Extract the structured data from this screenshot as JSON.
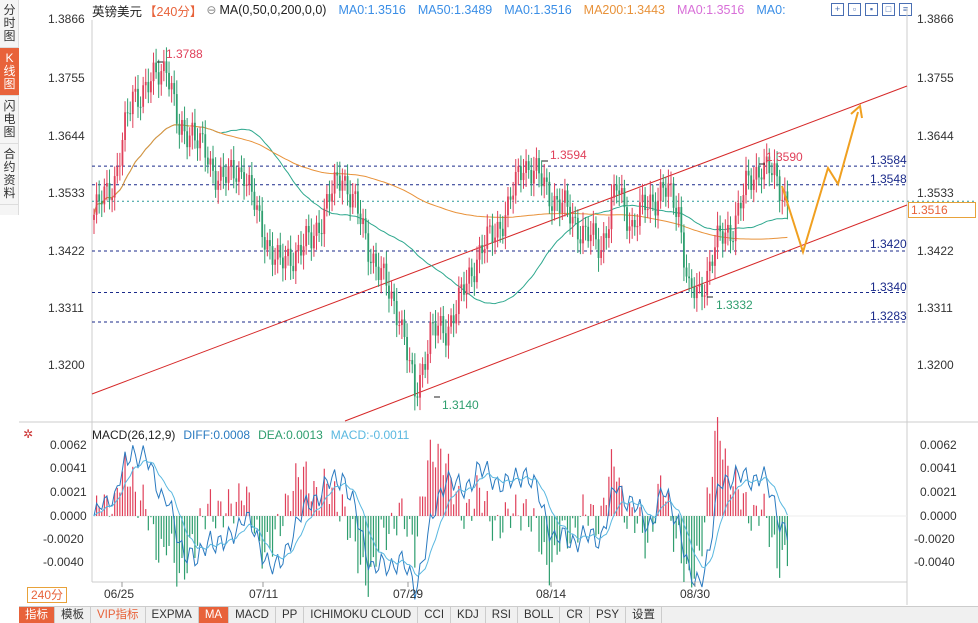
{
  "side_tabs": [
    {
      "label": "分时图",
      "active": false
    },
    {
      "label": "K线图",
      "active": true
    },
    {
      "label": "闪电图",
      "active": false
    },
    {
      "label": "合约资料",
      "active": false
    }
  ],
  "header": {
    "symbol": "英镑美元",
    "period": "【240分】",
    "circle_icon": "⊖",
    "ma_params": "MA(0,50,0,200,0,0)",
    "ma_items": [
      {
        "label": "MA0:1.3516",
        "color": "#3a8ee6"
      },
      {
        "label": "MA50:1.3489",
        "color": "#3a8ee6"
      },
      {
        "label": "MA0:1.3516",
        "color": "#3a8ee6"
      },
      {
        "label": "MA200:1.3443",
        "color": "#e8923a"
      },
      {
        "label": "MA0:1.3516",
        "color": "#d86fd8"
      },
      {
        "label": "MA0:",
        "color": "#3a8ee6"
      }
    ]
  },
  "toolbar_icons": [
    "crosshair-icon",
    "zoom-in-icon",
    "zoom-out-icon",
    "window-icon",
    "settings-icon"
  ],
  "price_axis": {
    "ticks": [
      "1.3866",
      "1.3755",
      "1.3644",
      "1.3533",
      "1.3422",
      "1.3311",
      "1.3200"
    ],
    "current_price": "1.3516"
  },
  "levels": [
    {
      "label": "1.3584",
      "price": 1.3584
    },
    {
      "label": "1.3548",
      "price": 1.3548
    },
    {
      "label": "1.3420",
      "price": 1.342
    },
    {
      "label": "1.3340",
      "price": 1.334
    },
    {
      "label": "1.3283",
      "price": 1.3283
    }
  ],
  "annotations": [
    {
      "label": "1.3788",
      "color": "#e0405a"
    },
    {
      "label": "1.3594",
      "color": "#e0405a"
    },
    {
      "label": "1.3590",
      "color": "#e0405a"
    },
    {
      "label": "1.3140",
      "color": "#2e9e6e"
    },
    {
      "label": "1.3332",
      "color": "#2e9e6e"
    }
  ],
  "macd": {
    "title": "MACD(26,12,9)",
    "diff": "DIFF:0.0008",
    "dea": "DEA:0.0013",
    "macd": "MACD:-0.0011",
    "ticks": [
      "0.0062",
      "0.0041",
      "0.0021",
      "0.0000",
      "-0.0020",
      "-0.0040"
    ]
  },
  "date_labels": [
    "06/25",
    "07/11",
    "07/29",
    "08/14",
    "08/30"
  ],
  "period_selector": "240分",
  "bottom_tabs": [
    {
      "label": "指标",
      "active": true
    },
    {
      "label": "模板",
      "active": false
    },
    {
      "label": "VIP指标",
      "active": false,
      "vip": true
    },
    {
      "label": "EXPMA",
      "active": false
    },
    {
      "label": "MA",
      "active": true
    },
    {
      "label": "MACD",
      "active": false
    },
    {
      "label": "PP",
      "active": false
    },
    {
      "label": "ICHIMOKU CLOUD",
      "active": false
    },
    {
      "label": "CCI",
      "active": false
    },
    {
      "label": "KDJ",
      "active": false
    },
    {
      "label": "RSI",
      "active": false
    },
    {
      "label": "BOLL",
      "active": false
    },
    {
      "label": "CR",
      "active": false
    },
    {
      "label": "PSY",
      "active": false
    },
    {
      "label": "设置",
      "active": false
    }
  ],
  "colors": {
    "up": "#e0405a",
    "down": "#2e9e6e",
    "ma50": "#2ea88e",
    "ma200": "#e8923a",
    "channel": "#d62828",
    "projection": "#f0a020",
    "dashed": "#1a2a8a",
    "diff": "#2a7ac0",
    "dea": "#5ab8e0"
  }
}
